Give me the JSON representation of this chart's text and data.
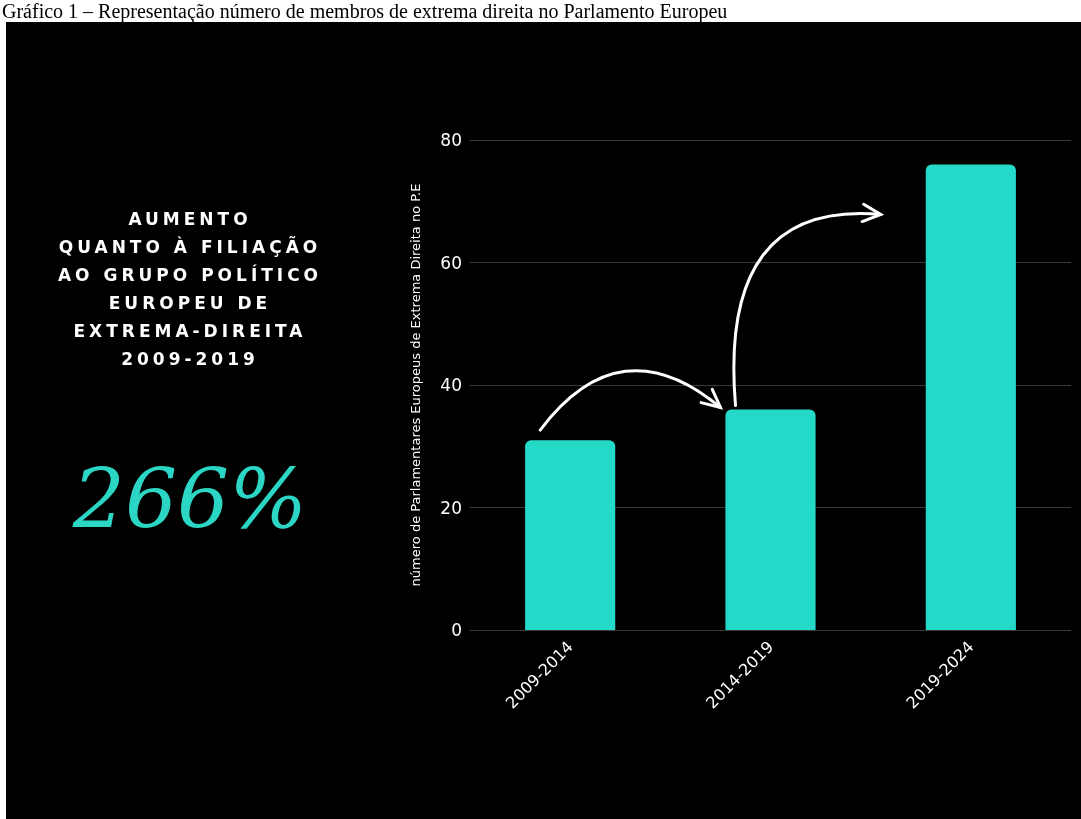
{
  "chart_data": {
    "type": "bar",
    "title": "Gráfico 1 – Representação número de membros de extrema direita no Parlamento Europeu",
    "ylabel": "número de Parlamentares Europeus de Extrema Direita no P.E",
    "annotations": [
      "AUMENTO\nQUANTO À FILIAÇÃO\nAO GRUPO POLÍTICO\nEUROPEU DE\nEXTREMA-DIREITA\n2009-2019",
      "266%"
    ],
    "categories": [
      "2009-2014",
      "2014-2019",
      "2019-2024"
    ],
    "values": [
      31,
      36,
      76
    ],
    "color": "#24d9c8",
    "ylim": [
      0,
      80
    ],
    "yticks": [
      0,
      20,
      40,
      60,
      80
    ],
    "grid": "y"
  }
}
